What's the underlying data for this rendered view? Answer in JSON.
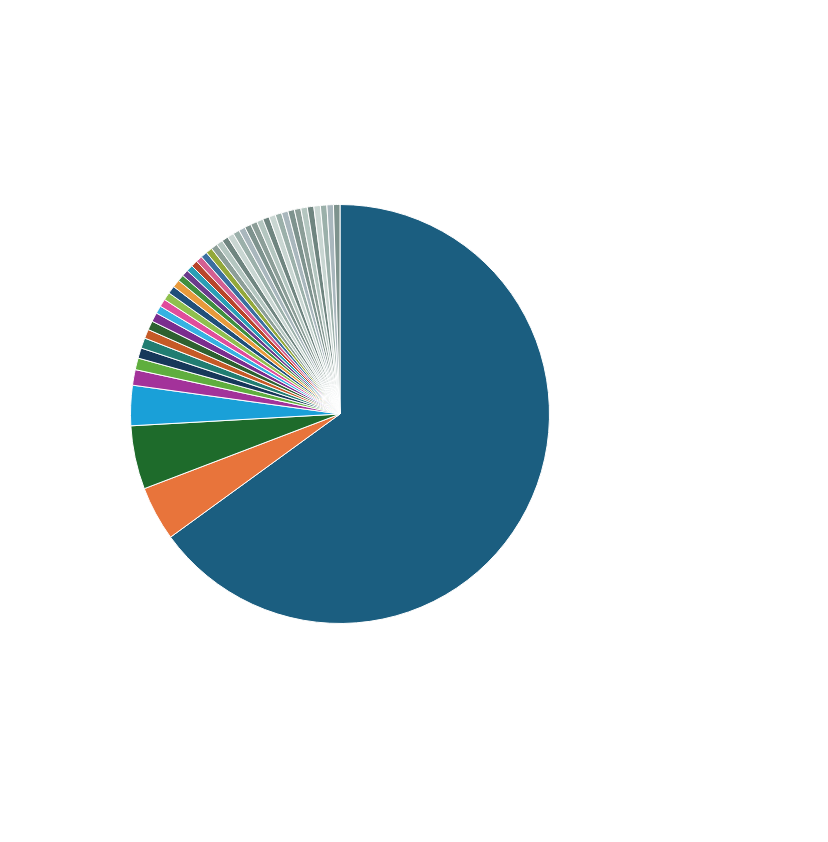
{
  "chart_data": {
    "type": "pie",
    "categories": [
      null,
      null,
      null,
      null,
      null,
      null,
      null,
      null,
      null,
      null,
      null,
      null,
      null,
      null,
      null,
      null,
      null,
      null,
      null,
      null,
      null,
      null,
      null,
      null,
      null,
      null,
      null,
      null,
      null,
      null,
      null,
      null,
      null,
      null,
      null,
      null,
      null,
      null,
      null,
      null,
      null,
      null,
      null,
      null
    ],
    "values": [
      65,
      4.2,
      4.9,
      3.1,
      1.2,
      0.9,
      0.8,
      0.8,
      0.7,
      0.7,
      0.7,
      0.6,
      0.6,
      0.6,
      0.6,
      0.6,
      0.5,
      0.5,
      0.5,
      0.5,
      0.5,
      0.5,
      0.5,
      0.5,
      0.5,
      0.5,
      0.5,
      0.5,
      0.5,
      0.5,
      0.5,
      0.5,
      0.5,
      0.5,
      0.5,
      0.5,
      0.5,
      0.5,
      0.5,
      0.5,
      0.5,
      0.5,
      0.5,
      0.5
    ],
    "colors": [
      "#1b5e80",
      "#e8743b",
      "#1e6b2b",
      "#1aa0d8",
      "#a3329a",
      "#5fae3e",
      "#17385a",
      "#217d72",
      "#c65a26",
      "#2d6130",
      "#7b2d8e",
      "#35b2e2",
      "#e04c9c",
      "#8fc04e",
      "#1f4f7a",
      "#e89a3c",
      "#3f8f3f",
      "#6a3c8c",
      "#2a9fb5",
      "#b8452a",
      "#d45f91",
      "#3b6fa0",
      "#93a83a",
      "#8c9e98",
      "#b4c6c0",
      "#6f8580",
      "#c9d6d2",
      "#9bb0aa",
      "#a9b7bd",
      "#7e938e",
      "#8c9e98",
      "#b4c6c0",
      "#6f8580",
      "#c9d6d2",
      "#9bb0aa",
      "#a9b7bd",
      "#7e938e",
      "#8c9e98",
      "#b4c6c0",
      "#6f8580",
      "#c9d6d2",
      "#9bb0aa",
      "#a9b7bd",
      "#7e938e"
    ]
  }
}
